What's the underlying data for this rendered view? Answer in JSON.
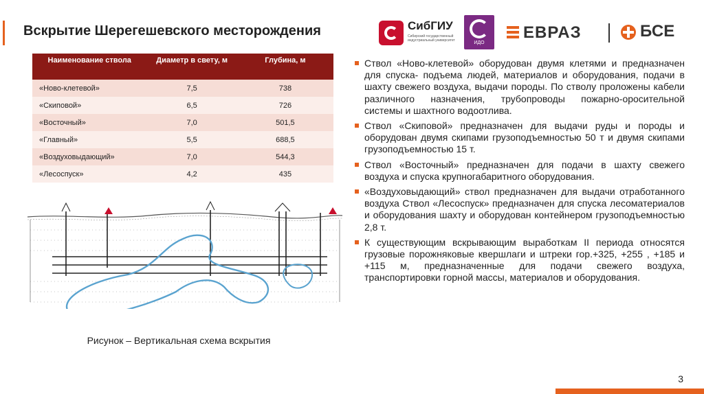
{
  "title": "Вскрытие Шерегешевского месторождения",
  "logos": {
    "sibgiu": {
      "name": "СибГИУ",
      "subtitle": "Сибирский государственный индустриальный университет"
    },
    "ido": {
      "name": "ИДО"
    },
    "evraz": {
      "name": "ЕВРАЗ"
    },
    "bse": {
      "name": "БСЕ"
    }
  },
  "table": {
    "headers": [
      "Наименование ствола",
      "Диаметр в свету, м",
      "Глубина, м"
    ],
    "rows": [
      [
        "«Ново-клетевой»",
        "7,5",
        "738"
      ],
      [
        "«Скиповой»",
        "6,5",
        "726"
      ],
      [
        "«Восточный»",
        "7,0",
        "501,5"
      ],
      [
        "«Главный»",
        "5,5",
        "688,5"
      ],
      [
        "«Воздуховыдающий»",
        "7,0",
        "544,3"
      ],
      [
        "«Лесоспуск»",
        "4,2",
        "435"
      ]
    ]
  },
  "figure_caption": "Рисунок – Вертикальная схема вскрытия",
  "bullets": [
    "Ствол «Ново-клетевой» оборудован двумя клетями и предназначен для спуска- подъема людей, материалов и оборудования, подачи в шахту свежего воздуха, выдачи породы. По стволу проложены кабели различного назначения, трубопроводы пожарно-оросительной системы и шахтного водоотлива.",
    "Ствол «Скиповой» предназначен для выдачи руды и породы и оборудован двумя скипами грузоподъемностью 50 т и двумя скипами грузоподъемностью 15 т.",
    "Ствол «Восточный» предназначен для подачи в шахту свежего воздуха и спуска крупногабаритного оборудования.",
    "«Воздуховыдающий» ствол предназначен для выдачи отработанного воздуха Ствол «Лесоспуск» предназначен для спуска лесоматериалов и оборудования шахту и оборудован контейнером грузоподъемностью 2,8 т.",
    "К существующим вскрывающим выработкам II периода относятся грузовые порожняковые квершлаги и штреки гор.+325, +255 , +185 и +115 м, предназначенные для подачи свежего воздуха, транспортировки горной массы, материалов и оборудования."
  ],
  "page_number": "3",
  "colors": {
    "accent": "#e5611e",
    "table_header": "#8b1a16",
    "ore_outline": "#5aa3cf"
  }
}
